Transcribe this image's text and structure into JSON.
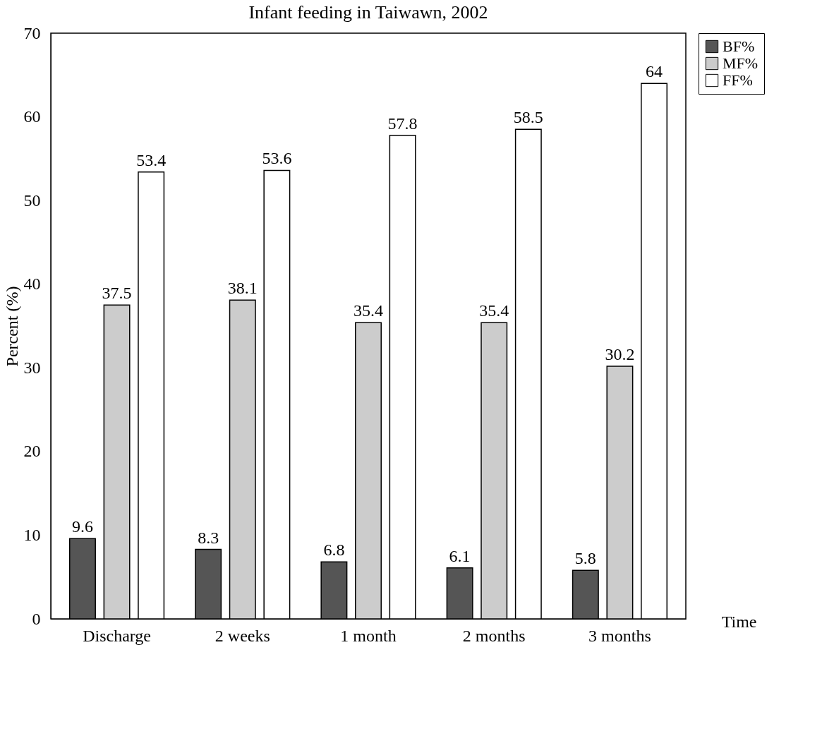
{
  "chart_data": {
    "type": "bar",
    "title": "Infant feeding in Taiwawn, 2002",
    "xlabel": "Time",
    "ylabel": "Percent (%)",
    "categories": [
      "Discharge",
      "2 weeks",
      "1 month",
      "2 months",
      "3 months"
    ],
    "series": [
      {
        "name": "BF%",
        "color": "#555555",
        "values": [
          9.6,
          8.3,
          6.8,
          6.1,
          5.8
        ]
      },
      {
        "name": "MF%",
        "color": "#cccccc",
        "values": [
          37.5,
          38.1,
          35.4,
          35.4,
          30.2
        ]
      },
      {
        "name": "FF%",
        "color": "#ffffff",
        "values": [
          53.4,
          53.6,
          57.8,
          58.5,
          64
        ]
      }
    ],
    "ylim": [
      0,
      70
    ],
    "yticks": [
      0,
      10,
      20,
      30,
      40,
      50,
      60,
      70
    ],
    "grid": false,
    "legend": "right",
    "data_labels": true
  }
}
